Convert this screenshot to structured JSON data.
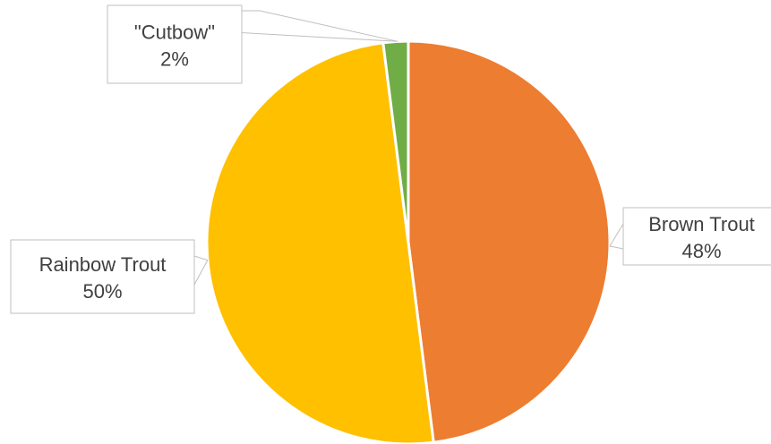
{
  "chart_data": {
    "type": "pie",
    "title": "",
    "slices": [
      {
        "label": "Brown Trout",
        "value": 48,
        "percent_label": "48%",
        "color": "#ED7D31"
      },
      {
        "label": "Rainbow Trout",
        "value": 50,
        "percent_label": "50%",
        "color": "#FFC000"
      },
      {
        "label": "\"Cutbow\"",
        "value": 2,
        "percent_label": "2%",
        "color": "#70AD47"
      }
    ],
    "start_angle_deg": 0,
    "direction": "clockwise",
    "slice_border_color": "#FFFFFF",
    "legend": "none",
    "data_labels": "callouts"
  }
}
